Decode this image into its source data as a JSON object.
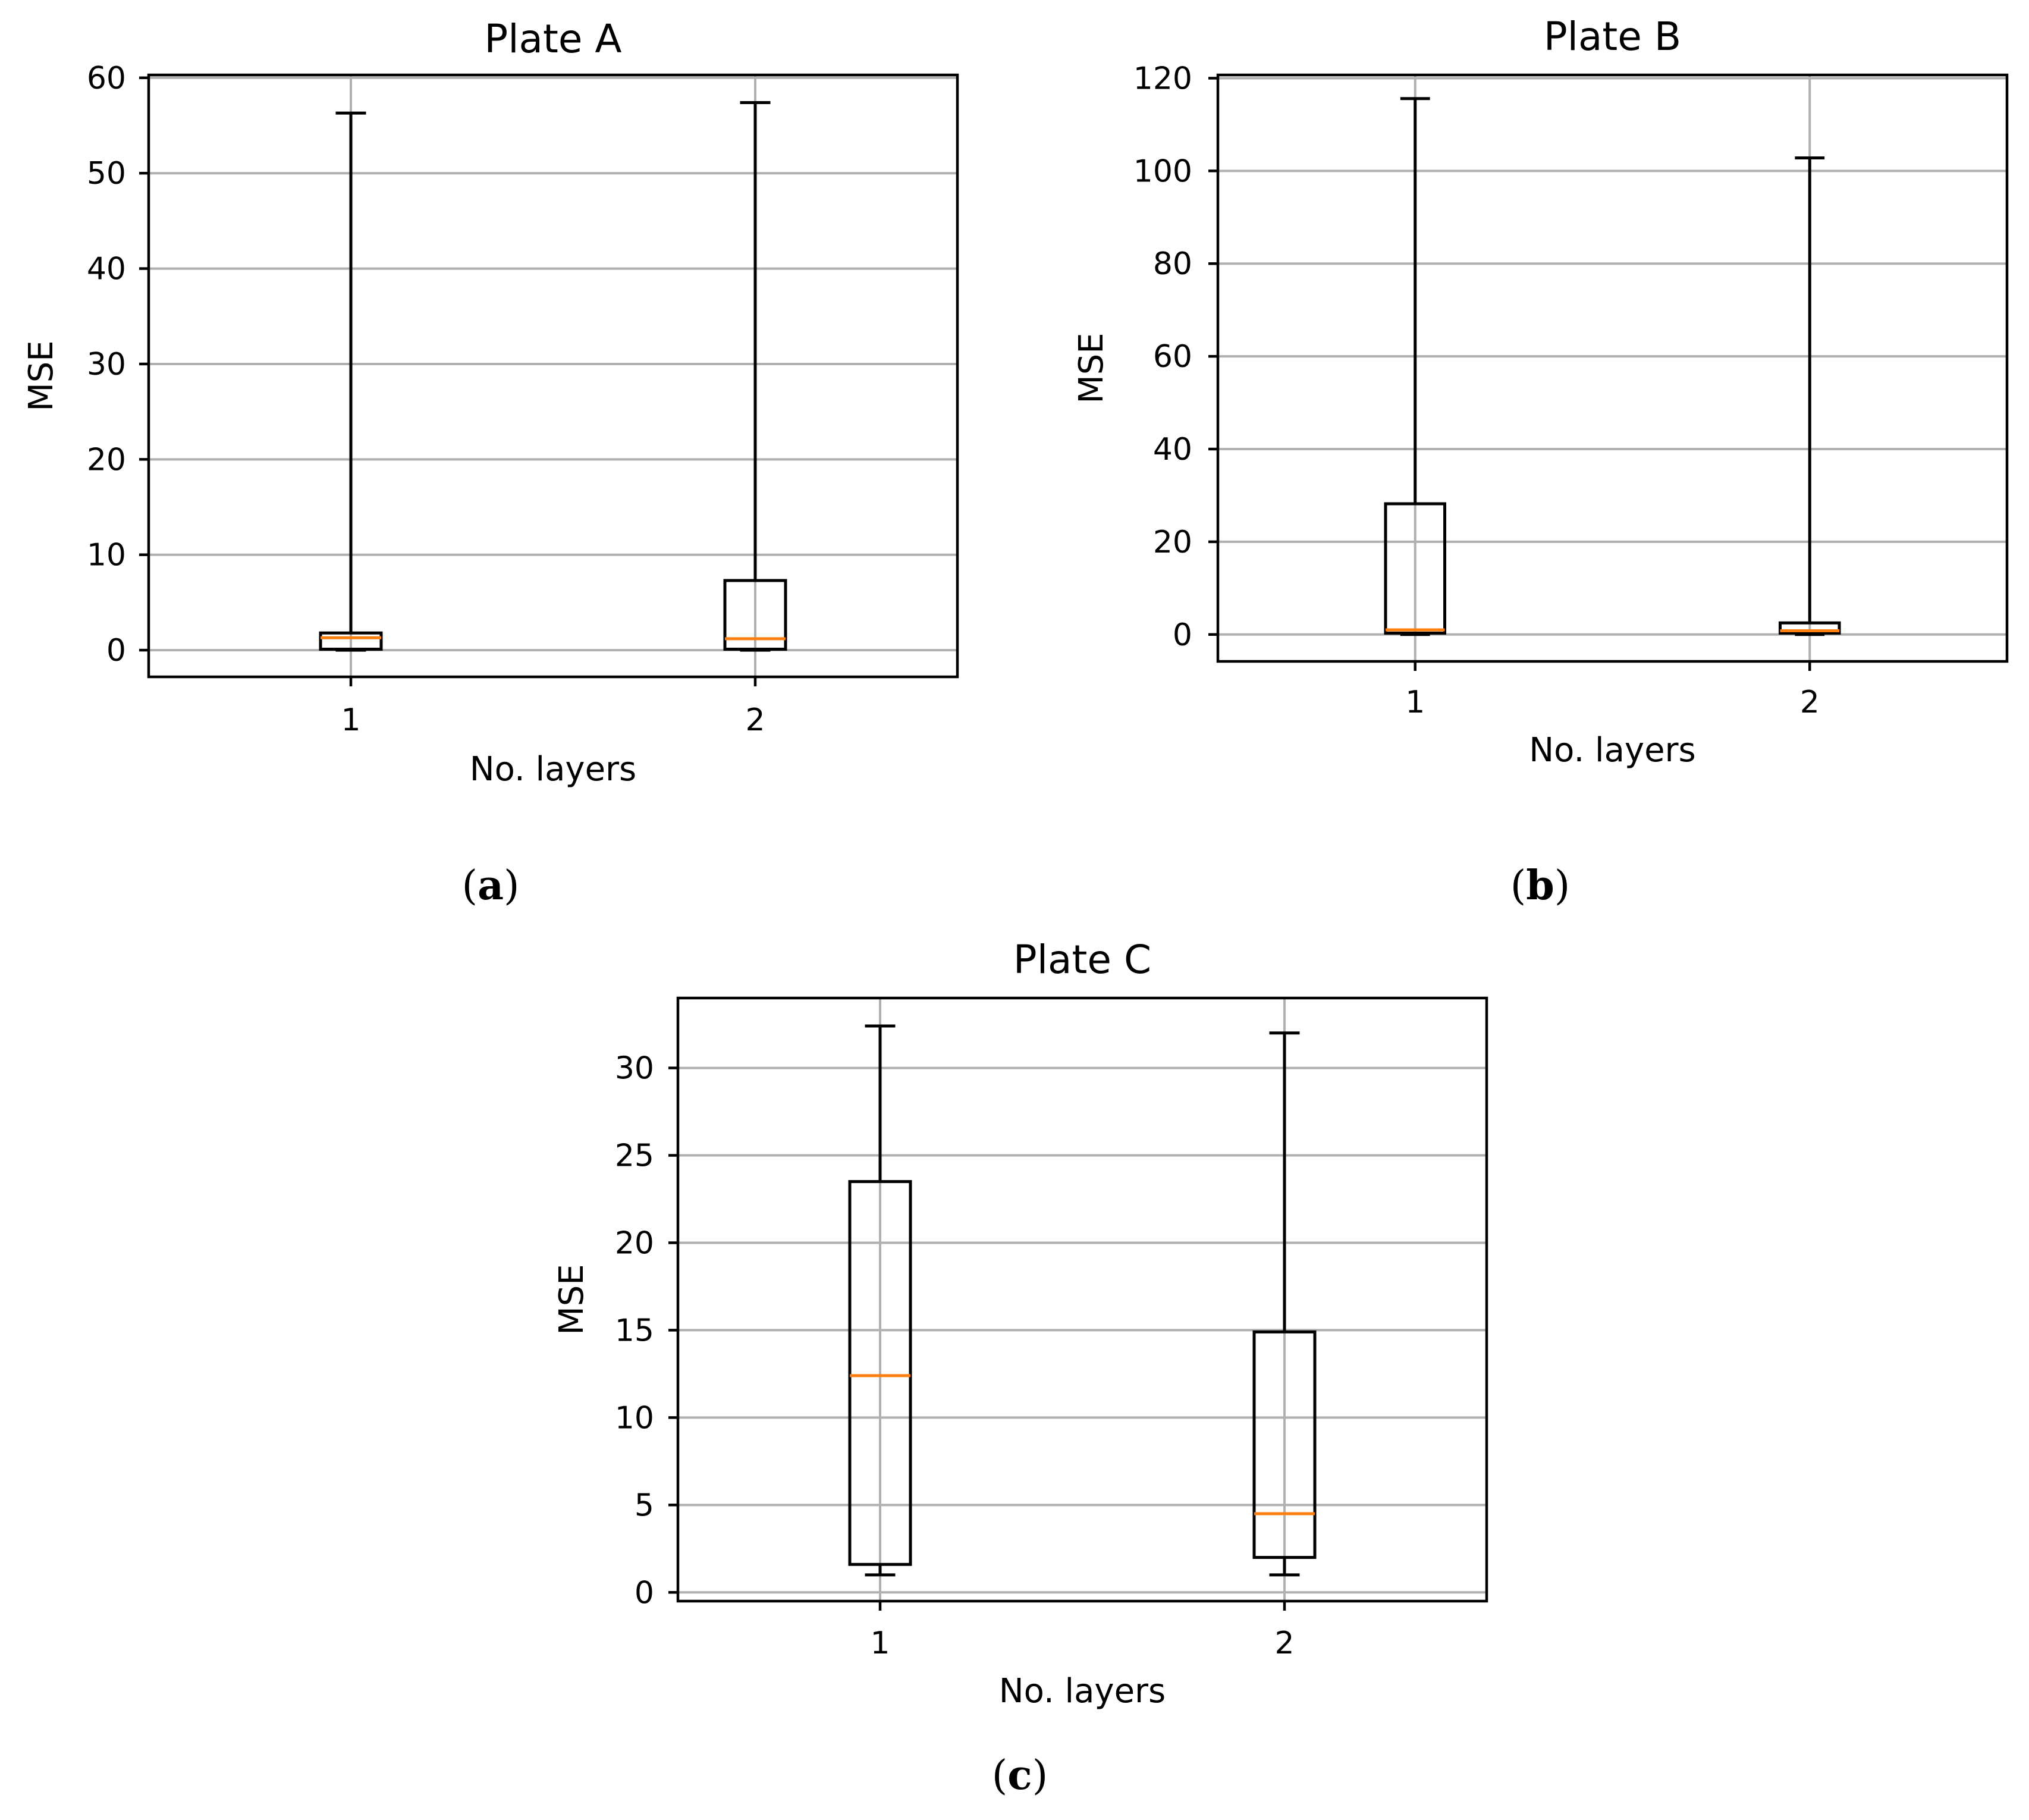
{
  "chart_data": [
    {
      "type": "box",
      "title": "Plate A",
      "xlabel": "No. layers",
      "ylabel": "MSE",
      "caption": "a",
      "categories": [
        "1",
        "2"
      ],
      "ylim": [
        -2.8,
        60.3
      ],
      "yticks": [
        0,
        10,
        20,
        30,
        40,
        50,
        60
      ],
      "grid": true,
      "boxes": [
        {
          "category": "1",
          "min": 0.0,
          "q1": 0.1,
          "median": 1.3,
          "q3": 1.8,
          "max": 56.3
        },
        {
          "category": "2",
          "min": 0.0,
          "q1": 0.1,
          "median": 1.2,
          "q3": 7.3,
          "max": 57.4
        }
      ]
    },
    {
      "type": "box",
      "title": "Plate B",
      "xlabel": "No. layers",
      "ylabel": "MSE",
      "caption": "b",
      "categories": [
        "1",
        "2"
      ],
      "ylim": [
        -5.8,
        120.7
      ],
      "yticks": [
        0,
        20,
        40,
        60,
        80,
        100,
        120
      ],
      "grid": true,
      "boxes": [
        {
          "category": "1",
          "min": 0.0,
          "q1": 0.3,
          "median": 1.0,
          "q3": 28.2,
          "max": 115.6
        },
        {
          "category": "2",
          "min": 0.0,
          "q1": 0.3,
          "median": 0.8,
          "q3": 2.5,
          "max": 102.8
        }
      ]
    },
    {
      "type": "box",
      "title": "Plate C",
      "xlabel": "No. layers",
      "ylabel": "MSE",
      "caption": "c",
      "categories": [
        "1",
        "2"
      ],
      "ylim": [
        -0.5,
        34.0
      ],
      "yticks": [
        0,
        5,
        10,
        15,
        20,
        25,
        30
      ],
      "grid": true,
      "boxes": [
        {
          "category": "1",
          "min": 1.0,
          "q1": 1.6,
          "median": 12.4,
          "q3": 23.5,
          "max": 32.4
        },
        {
          "category": "2",
          "min": 1.0,
          "q1": 2.0,
          "median": 4.5,
          "q3": 14.9,
          "max": 32.0
        }
      ]
    }
  ],
  "colors": {
    "median": "#ff7f0e",
    "box": "#000000",
    "grid": "#b0b0b0"
  }
}
